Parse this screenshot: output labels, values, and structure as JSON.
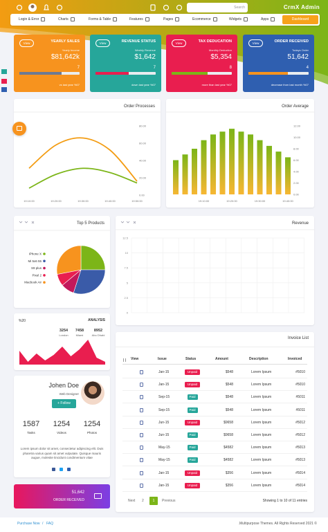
{
  "header": {
    "search": "Search",
    "brand": "CrmX Admin"
  },
  "nav": {
    "items": [
      "Login & Error",
      "Charts",
      "Forms & Table",
      "Features",
      "Pages",
      "Ecommerce",
      "Widgets",
      "Apps"
    ],
    "button": "Dashboard"
  },
  "stat_cards": [
    {
      "button": "View",
      "title": "YEARLY SALES",
      "subtitle": "Yearly Income",
      "value": "$81,642k",
      "count": 7,
      "note": "vs last year %07",
      "color": "#f7931e"
    },
    {
      "button": "View",
      "title": "REVENUE STATUS",
      "subtitle": "Weekly Revenue",
      "value": "$1,642",
      "count": 7,
      "note": "down last year %07",
      "color": "#26a69a"
    },
    {
      "button": "View",
      "title": "TAX DEDUCATION",
      "subtitle": "Monthly Deduction",
      "value": "$5,354",
      "count": 8,
      "note": "more than last year %07",
      "color": "#e91e4f"
    },
    {
      "button": "View",
      "title": "ORDER RECEIVED",
      "subtitle": "Todays Order",
      "value": "51,642",
      "count": 4,
      "note": "decrease from last month %07",
      "color": "#2f5fb0"
    }
  ],
  "order_processes": {
    "type": "line",
    "title": "Order Processes",
    "categories": [
      "19:10:00",
      "19:20:00",
      "19:30:00",
      "19:40:00",
      "19:50:00"
    ],
    "series": [
      {
        "color": "#f39c12",
        "values": [
          31,
          58,
          66,
          52,
          16
        ]
      },
      {
        "color": "#7cb518",
        "values": [
          8,
          24,
          31,
          26,
          14
        ]
      }
    ],
    "ylim": [
      0,
      80
    ],
    "yticks": [
      {
        "value": 0,
        "label": "0.00"
      },
      {
        "value": 20,
        "label": "20.00"
      },
      {
        "value": 40,
        "label": "40.00"
      },
      {
        "value": 60,
        "label": "60.00"
      },
      {
        "value": 80,
        "label": "80.00"
      }
    ]
  },
  "order_average": {
    "type": "bar",
    "title": "Order Average",
    "categories": [
      null,
      null,
      null,
      "19:10:00",
      null,
      null,
      "19:20:00",
      null,
      null,
      "19:30:00",
      null,
      null,
      "19:40:00"
    ],
    "values": [
      6,
      7,
      8,
      9.5,
      10.5,
      11,
      11.5,
      11,
      10.5,
      9.5,
      8.5,
      7.5,
      6.5
    ],
    "gradient": [
      "#7cb518",
      "#f7b733"
    ],
    "ylim": [
      0,
      12
    ],
    "yticks": [
      {
        "value": 0,
        "label": "0.00"
      },
      {
        "value": 2,
        "label": "2.00"
      },
      {
        "value": 4,
        "label": "4.00"
      },
      {
        "value": 6,
        "label": "6.00"
      },
      {
        "value": 8,
        "label": "8.00"
      },
      {
        "value": 10,
        "label": "10.00"
      },
      {
        "value": 12,
        "label": "12.00"
      }
    ]
  },
  "top_products": {
    "type": "pie",
    "title": "Top 5 Products",
    "categories": [
      "iPhone X",
      "Mi 5x6 55",
      "S9 plus",
      "Pixel 2",
      "Macbook Air"
    ],
    "values": [
      25,
      30,
      9,
      8,
      28
    ],
    "colors": [
      "#7cb518",
      "#3a5ba8",
      "#c2185b",
      "#e91e4f",
      "#f7931e"
    ]
  },
  "revenue": {
    "type": "line",
    "title": "Revenue",
    "ylim": [
      0,
      12.5
    ],
    "yticks": [
      0,
      2.5,
      5,
      7.5,
      10,
      12.5
    ],
    "grid": true
  },
  "analysis": {
    "type": "area",
    "label": "%20",
    "title": "ANALYSIS",
    "stats": [
      {
        "value": 3254,
        "label": "London"
      },
      {
        "value": 7458,
        "label": "Miami"
      },
      {
        "value": 8952,
        "label": "Abu Dhabi"
      }
    ],
    "values": [
      20,
      4,
      16,
      6,
      14,
      26,
      12,
      22,
      36,
      10,
      4
    ],
    "color": "#e91e4f"
  },
  "profile": {
    "name": "Johen Doe",
    "role": "Web Designer",
    "button": "+ Follow",
    "stats": [
      {
        "value": 1587,
        "label": "Tasks"
      },
      {
        "value": 1254,
        "label": "Videos"
      },
      {
        "value": 1254,
        "label": "Photos"
      }
    ],
    "bio": "Lorem ipsum dolor sit amet, consectetur adipiscing elit. Duis pharetra varius quam sit amet vulputate. Quisque mauris augue, molestie tincidunt condimentum vitae"
  },
  "order_received": {
    "value": "51,642",
    "label": "ORDER RECEIVED"
  },
  "invoice": {
    "title": "Invoice List",
    "columns": [
      "View",
      "Issue",
      "Status",
      "Amount",
      "Description",
      "Invoiced"
    ],
    "rows": [
      [
        "Jan-15",
        "Unpaid",
        "$548",
        "Lorem Ipsum",
        "#5010"
      ],
      [
        "Jan-15",
        "Unpaid",
        "$548",
        "Lorem Ipsum",
        "#5010"
      ],
      [
        "Sep-15",
        "Paid",
        "$548",
        "Lorem Ipsum",
        "#5011"
      ],
      [
        "Sep-15",
        "Paid",
        "$548",
        "Lorem Ipsum",
        "#5011"
      ],
      [
        "Jun-15",
        "Unpaid",
        "$9658",
        "Lorem Ipsum",
        "#5012"
      ],
      [
        "Jun-15",
        "Paid",
        "$9658",
        "Lorem Ipsum",
        "#5012"
      ],
      [
        "May-15",
        "Paid",
        "$4582",
        "Lorem Ipsum",
        "#5013"
      ],
      [
        "May-15",
        "Paid",
        "$4582",
        "Lorem Ipsum",
        "#5013"
      ],
      [
        "Jan-15",
        "Unpaid",
        "$356",
        "Lorem Ipsum",
        "#5014"
      ],
      [
        "Jan-15",
        "Unpaid",
        "$356",
        "Lorem Ipsum",
        "#5014"
      ]
    ],
    "pagination": [
      "Next",
      "2",
      "1",
      "Previous"
    ],
    "summary": "Showing 1 to 10 of 11 entries"
  },
  "footer": {
    "links": [
      "Purchase Now",
      "/",
      "FAQ"
    ],
    "copyright": ".Multipurpose Themes. All Rights Reserved 2021 ©"
  }
}
